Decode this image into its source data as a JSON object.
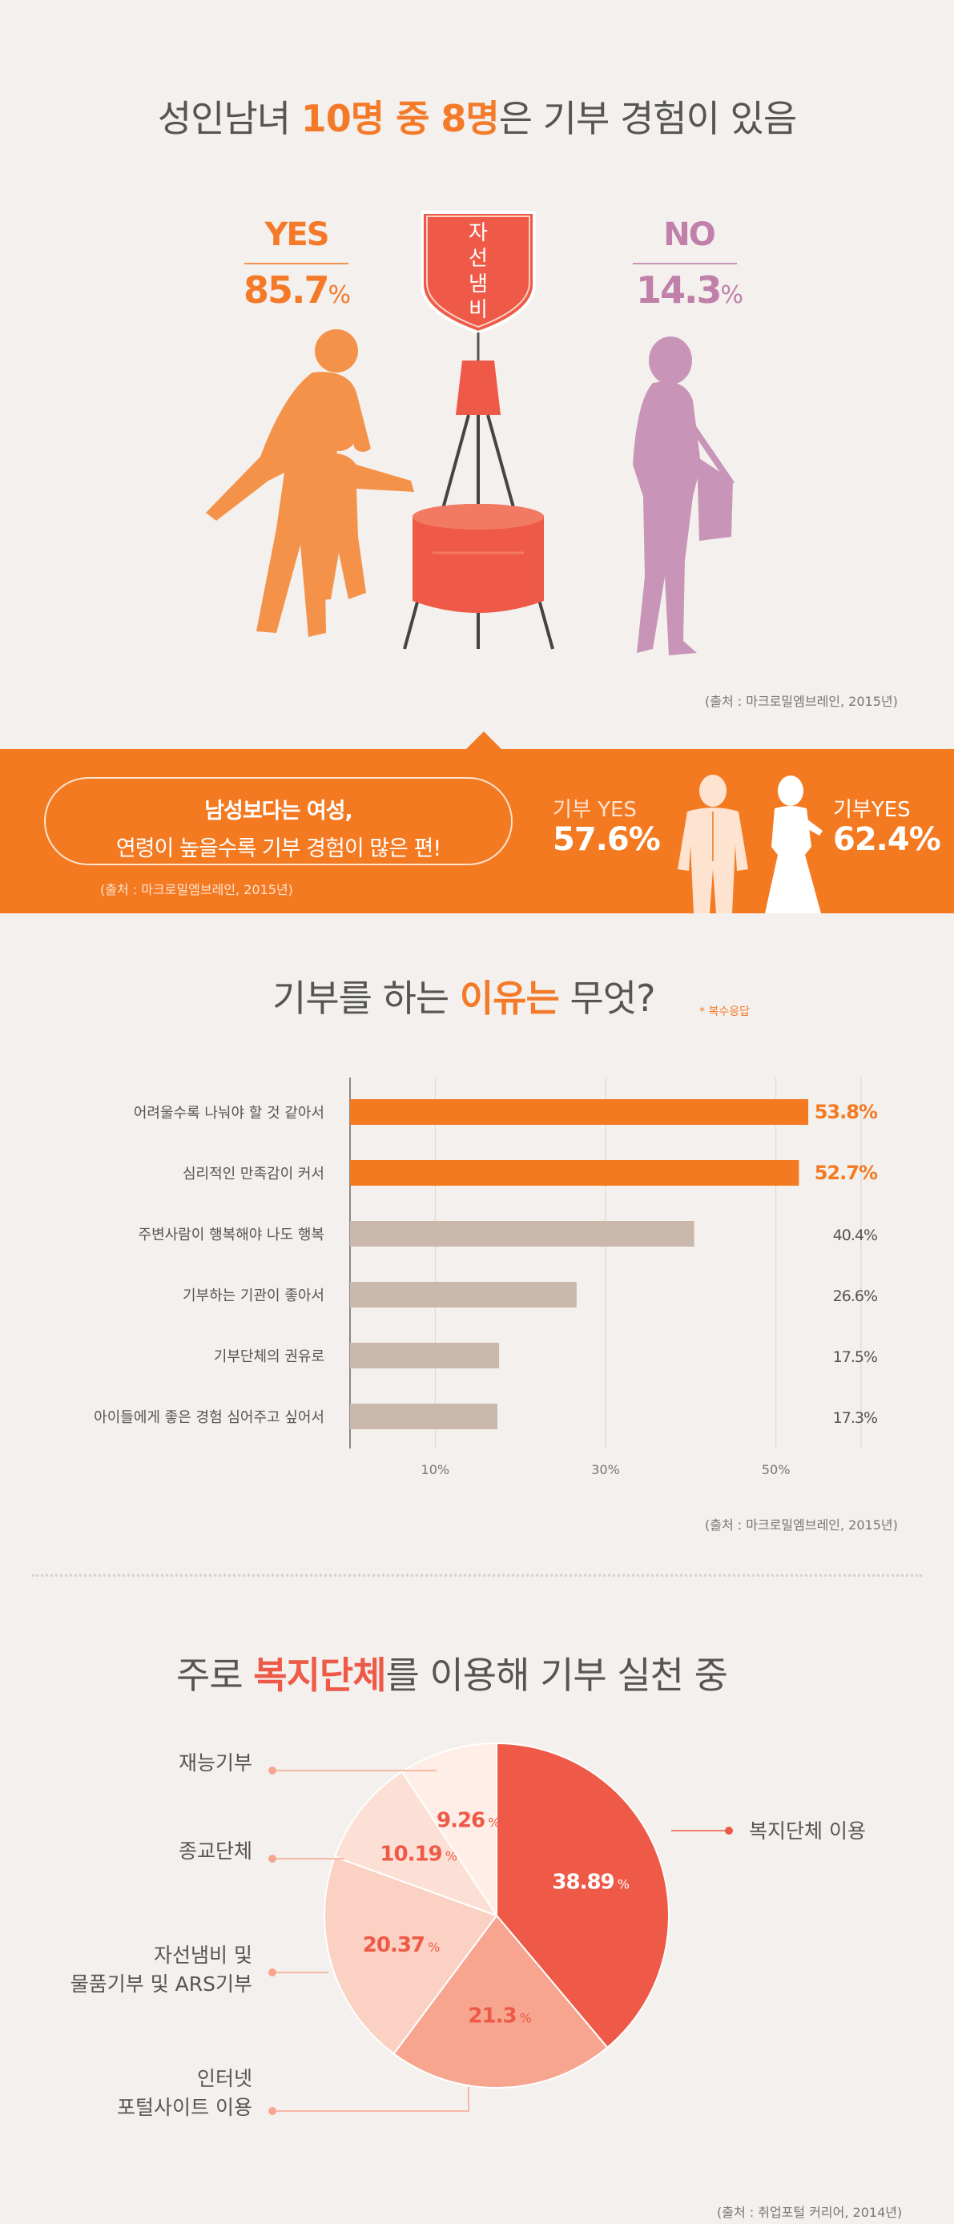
{
  "section1": {
    "headline_pre": "성인남녀 ",
    "headline_hl": "10명 중 8명",
    "headline_post": "은 기부 경험이 있음",
    "yes_label": "YES",
    "yes_value": "85.7",
    "yes_unit": "%",
    "no_label": "NO",
    "no_value": "14.3",
    "no_unit": "%",
    "kettle_text": [
      "자",
      "선",
      "냄",
      "비"
    ],
    "source": "(출처 : 마크로밀엠브레인, 2015년)"
  },
  "section2": {
    "pill_line1": "남성보다는 여성,",
    "pill_line2": "연령이 높을수록 기부 경험이 많은 편!",
    "source": "(출처 : 마크로밀엠브레인, 2015년)",
    "male_label": "기부 YES",
    "male_value": "57.6%",
    "female_label": "기부YES",
    "female_value": "62.4%"
  },
  "section3": {
    "title_pre": "기부를 하는 ",
    "title_hl": "이유는",
    "title_post": " 무엇?",
    "note": "* 복수응답",
    "source": "(출처 : 마크로밀엠브레인, 2015년)"
  },
  "section4": {
    "title_pre": "주로 ",
    "title_hl": "복지단체",
    "title_post": "를 이용해 기부 실천 중",
    "labels": {
      "welfare": "복지단체 이용",
      "talent": "재능기부",
      "religion": "종교단체",
      "kettle_l1": "자선냄비 및",
      "kettle_l2": "물품기부 및 ARS기부",
      "internet_l1": "인터넷",
      "internet_l2": "포털사이트 이용"
    },
    "source": "(출처 : 취업포털 커리어, 2014년)"
  },
  "colors": {
    "orange": "#f47a22",
    "coral": "#ee5a47",
    "bar_gray": "#c9b8ab",
    "yes_silhouette": "#f4924a",
    "no_silhouette": "#c895b8"
  },
  "chart_data": [
    {
      "type": "bar",
      "orientation": "horizontal",
      "categories": [
        "어려울수록 나눠야 할 것 같아서",
        "심리적인 만족감이 커서",
        "주변사람이 행복해야 나도 행복",
        "기부하는 기관이 좋아서",
        "기부단체의 권유로",
        "아이들에게 좋은 경험 심어주고 싶어서"
      ],
      "values": [
        53.8,
        52.7,
        40.4,
        26.6,
        17.5,
        17.3
      ],
      "value_labels": [
        "53.8%",
        "52.7%",
        "40.4%",
        "26.6%",
        "17.5%",
        "17.3%"
      ],
      "highlight": [
        true,
        true,
        false,
        false,
        false,
        false
      ],
      "xticks": [
        10,
        30,
        50
      ],
      "xtick_labels": [
        "10%",
        "30%",
        "50%"
      ],
      "xlim": [
        0,
        60
      ],
      "grid": true
    },
    {
      "type": "pie",
      "slices": [
        {
          "key": "welfare",
          "label": "복지단체 이용",
          "value": 38.89,
          "value_text": "38.89",
          "color": "#ee5a47"
        },
        {
          "key": "internet",
          "label": "인터넷 포털사이트 이용",
          "value": 21.3,
          "value_text": "21.3",
          "color": "#f7a58f"
        },
        {
          "key": "kettle",
          "label": "자선냄비 및 물품기부 및 ARS기부",
          "value": 20.37,
          "value_text": "20.37",
          "color": "#fbd1c3"
        },
        {
          "key": "religion",
          "label": "종교단체",
          "value": 10.19,
          "value_text": "10.19",
          "color": "#fde0d5"
        },
        {
          "key": "talent",
          "label": "재능기부",
          "value": 9.26,
          "value_text": "9.26",
          "color": "#feeee7"
        }
      ],
      "unit": "%"
    }
  ]
}
